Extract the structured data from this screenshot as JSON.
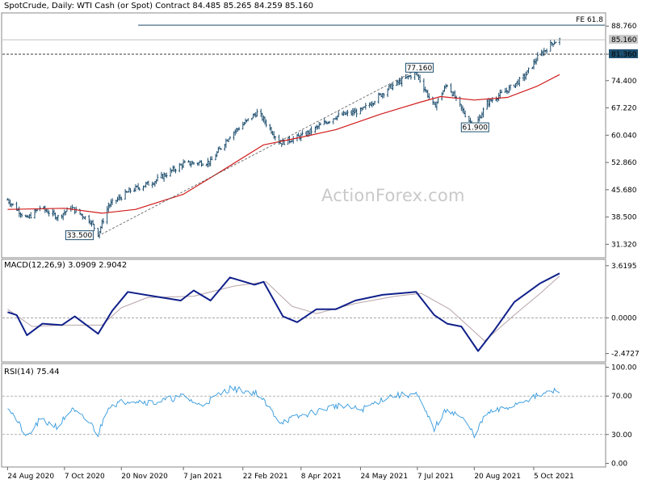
{
  "header": {
    "title": "SpotCrude, Daily:  WTI Cash (or Spot) Contract  84.485 85.265 84.259 85.160"
  },
  "watermark": "ActionForex.com",
  "colors": {
    "price_bar": "#1e4e6e",
    "sma": "#d11b1b",
    "macd_main": "#10208a",
    "macd_signal": "#b8a4a8",
    "rsi": "#3399dd",
    "fe_line": "#1e4e6e",
    "support_line": "#1e4e6e",
    "trendline": "#555555",
    "label_bg": "#1e4e6e"
  },
  "panels": {
    "price": {
      "axis_ticks": [
        "88.760",
        "81.360",
        "74.400",
        "67.220",
        "60.040",
        "52.860",
        "45.680",
        "38.500",
        "31.320"
      ],
      "current_price_label": "85.160",
      "support_label": "81.360",
      "fe_label": "FE 61.8",
      "annotations": [
        "77.160",
        "61.900",
        "33.500"
      ]
    },
    "macd": {
      "title": "MACD(12,26,9) 3.0909 2.9042",
      "axis_ticks": [
        "3.6195",
        "0.0000",
        "-2.4727"
      ]
    },
    "rsi": {
      "title": "RSI(14) 75.44",
      "axis_ticks": [
        "100.00",
        "70.00",
        "30.00",
        "0.00"
      ]
    }
  },
  "x_axis": {
    "labels": [
      "24 Aug 2020",
      "7 Oct 2020",
      "20 Nov 2020",
      "7 Jan 2021",
      "22 Feb 2021",
      "8 Apr 2021",
      "24 May 2021",
      "7 Jul 2021",
      "20 Aug 2021",
      "5 Oct 2021"
    ]
  },
  "chart_data": {
    "type": "ohlc",
    "symbol": "SpotCrude",
    "timeframe": "Daily",
    "last_bar": {
      "open": 84.485,
      "high": 85.265,
      "low": 84.259,
      "close": 85.16
    },
    "price_axis_range": [
      28.0,
      92.0
    ],
    "price_keypoints": [
      {
        "x": "2020-08-24",
        "y": 43.0
      },
      {
        "x": "2020-09-08",
        "y": 38.0
      },
      {
        "x": "2020-09-18",
        "y": 41.0
      },
      {
        "x": "2020-10-02",
        "y": 38.5
      },
      {
        "x": "2020-10-12",
        "y": 41.0
      },
      {
        "x": "2020-10-27",
        "y": 37.5
      },
      {
        "x": "2020-11-02",
        "y": 34.0
      },
      {
        "x": "2020-11-10",
        "y": 41.5
      },
      {
        "x": "2020-11-27",
        "y": 45.5
      },
      {
        "x": "2020-12-15",
        "y": 47.8
      },
      {
        "x": "2021-01-07",
        "y": 52.5
      },
      {
        "x": "2021-01-28",
        "y": 53.0
      },
      {
        "x": "2021-02-12",
        "y": 60.0
      },
      {
        "x": "2021-03-05",
        "y": 66.0
      },
      {
        "x": "2021-03-08",
        "y": 65.0
      },
      {
        "x": "2021-03-23",
        "y": 58.0
      },
      {
        "x": "2021-04-10",
        "y": 60.0
      },
      {
        "x": "2021-05-05",
        "y": 65.0
      },
      {
        "x": "2021-05-25",
        "y": 66.5
      },
      {
        "x": "2021-06-15",
        "y": 72.5
      },
      {
        "x": "2021-07-06",
        "y": 76.5
      },
      {
        "x": "2021-07-20",
        "y": 67.5
      },
      {
        "x": "2021-07-30",
        "y": 73.5
      },
      {
        "x": "2021-08-10",
        "y": 67.0
      },
      {
        "x": "2021-08-20",
        "y": 62.0
      },
      {
        "x": "2021-08-30",
        "y": 68.5
      },
      {
        "x": "2021-09-15",
        "y": 72.0
      },
      {
        "x": "2021-09-28",
        "y": 75.5
      },
      {
        "x": "2021-10-08",
        "y": 80.5
      },
      {
        "x": "2021-10-20",
        "y": 84.5
      },
      {
        "x": "2021-10-25",
        "y": 85.16
      }
    ],
    "sma_keypoints": [
      {
        "x": "2020-08-24",
        "y": 40.5
      },
      {
        "x": "2020-10-07",
        "y": 40.8
      },
      {
        "x": "2020-11-05",
        "y": 39.5
      },
      {
        "x": "2020-12-01",
        "y": 40.5
      },
      {
        "x": "2021-01-07",
        "y": 44.5
      },
      {
        "x": "2021-02-05",
        "y": 50.5
      },
      {
        "x": "2021-03-10",
        "y": 57.5
      },
      {
        "x": "2021-04-08",
        "y": 59.5
      },
      {
        "x": "2021-05-05",
        "y": 61.5
      },
      {
        "x": "2021-06-08",
        "y": 65.5
      },
      {
        "x": "2021-07-07",
        "y": 68.5
      },
      {
        "x": "2021-07-25",
        "y": 70.2
      },
      {
        "x": "2021-08-20",
        "y": 69.3
      },
      {
        "x": "2021-09-15",
        "y": 70.0
      },
      {
        "x": "2021-10-08",
        "y": 73.0
      },
      {
        "x": "2021-10-25",
        "y": 76.0
      }
    ],
    "trendline": [
      {
        "x": "2020-11-02",
        "y": 33.5
      },
      {
        "x": "2021-07-06",
        "y": 77.16
      }
    ],
    "support_level": 81.36,
    "fe_level": 89.0,
    "macd_axis_range": [
      -3.0,
      4.0
    ],
    "macd_keypoints": [
      {
        "x": "2020-08-24",
        "y": 0.4
      },
      {
        "x": "2020-08-31",
        "y": 0.2
      },
      {
        "x": "2020-09-08",
        "y": -1.2
      },
      {
        "x": "2020-09-20",
        "y": -0.4
      },
      {
        "x": "2020-10-05",
        "y": -0.5
      },
      {
        "x": "2020-10-15",
        "y": 0.1
      },
      {
        "x": "2020-11-02",
        "y": -1.1
      },
      {
        "x": "2020-11-13",
        "y": 0.5
      },
      {
        "x": "2020-11-25",
        "y": 1.8
      },
      {
        "x": "2020-12-15",
        "y": 1.5
      },
      {
        "x": "2021-01-05",
        "y": 1.2
      },
      {
        "x": "2021-01-15",
        "y": 1.9
      },
      {
        "x": "2021-01-28",
        "y": 1.2
      },
      {
        "x": "2021-02-12",
        "y": 2.8
      },
      {
        "x": "2021-03-03",
        "y": 2.3
      },
      {
        "x": "2021-03-10",
        "y": 2.5
      },
      {
        "x": "2021-03-25",
        "y": 0.1
      },
      {
        "x": "2021-04-05",
        "y": -0.3
      },
      {
        "x": "2021-04-20",
        "y": 0.6
      },
      {
        "x": "2021-05-05",
        "y": 0.6
      },
      {
        "x": "2021-05-20",
        "y": 1.2
      },
      {
        "x": "2021-06-10",
        "y": 1.6
      },
      {
        "x": "2021-07-06",
        "y": 1.8
      },
      {
        "x": "2021-07-20",
        "y": 0.2
      },
      {
        "x": "2021-07-30",
        "y": -0.4
      },
      {
        "x": "2021-08-10",
        "y": -0.6
      },
      {
        "x": "2021-08-23",
        "y": -2.3
      },
      {
        "x": "2021-09-05",
        "y": -0.8
      },
      {
        "x": "2021-09-20",
        "y": 1.1
      },
      {
        "x": "2021-10-10",
        "y": 2.4
      },
      {
        "x": "2021-10-25",
        "y": 3.09
      }
    ],
    "macd_signal_keypoints": [
      {
        "x": "2020-08-24",
        "y": 0.6
      },
      {
        "x": "2020-09-12",
        "y": -0.6
      },
      {
        "x": "2020-10-05",
        "y": -0.5
      },
      {
        "x": "2020-11-05",
        "y": -0.5
      },
      {
        "x": "2020-11-20",
        "y": 0.7
      },
      {
        "x": "2020-12-10",
        "y": 1.4
      },
      {
        "x": "2021-01-15",
        "y": 1.5
      },
      {
        "x": "2021-02-15",
        "y": 2.2
      },
      {
        "x": "2021-03-12",
        "y": 2.5
      },
      {
        "x": "2021-04-01",
        "y": 0.8
      },
      {
        "x": "2021-04-20",
        "y": 0.3
      },
      {
        "x": "2021-05-20",
        "y": 1.0
      },
      {
        "x": "2021-06-20",
        "y": 1.5
      },
      {
        "x": "2021-07-10",
        "y": 1.7
      },
      {
        "x": "2021-08-01",
        "y": 0.6
      },
      {
        "x": "2021-08-28",
        "y": -1.6
      },
      {
        "x": "2021-09-20",
        "y": 0.2
      },
      {
        "x": "2021-10-10",
        "y": 1.7
      },
      {
        "x": "2021-10-25",
        "y": 2.9
      }
    ],
    "rsi_axis_range": [
      0,
      100
    ],
    "rsi_keypoints": [
      {
        "x": "2020-08-24",
        "y": 60
      },
      {
        "x": "2020-09-08",
        "y": 27
      },
      {
        "x": "2020-09-18",
        "y": 45
      },
      {
        "x": "2020-10-02",
        "y": 38
      },
      {
        "x": "2020-10-12",
        "y": 56
      },
      {
        "x": "2020-10-27",
        "y": 42
      },
      {
        "x": "2020-11-02",
        "y": 30
      },
      {
        "x": "2020-11-10",
        "y": 60
      },
      {
        "x": "2020-11-27",
        "y": 66
      },
      {
        "x": "2020-12-15",
        "y": 63
      },
      {
        "x": "2021-01-07",
        "y": 70
      },
      {
        "x": "2021-01-20",
        "y": 60
      },
      {
        "x": "2021-02-12",
        "y": 78
      },
      {
        "x": "2021-03-05",
        "y": 73
      },
      {
        "x": "2021-03-23",
        "y": 43
      },
      {
        "x": "2021-04-10",
        "y": 50
      },
      {
        "x": "2021-05-05",
        "y": 60
      },
      {
        "x": "2021-05-25",
        "y": 56
      },
      {
        "x": "2021-06-15",
        "y": 70
      },
      {
        "x": "2021-07-06",
        "y": 72
      },
      {
        "x": "2021-07-20",
        "y": 36
      },
      {
        "x": "2021-07-30",
        "y": 57
      },
      {
        "x": "2021-08-10",
        "y": 48
      },
      {
        "x": "2021-08-20",
        "y": 30
      },
      {
        "x": "2021-08-30",
        "y": 52
      },
      {
        "x": "2021-09-15",
        "y": 58
      },
      {
        "x": "2021-09-28",
        "y": 66
      },
      {
        "x": "2021-10-08",
        "y": 70
      },
      {
        "x": "2021-10-20",
        "y": 75
      },
      {
        "x": "2021-10-25",
        "y": 75.44
      }
    ],
    "rsi_levels": [
      70,
      30
    ],
    "x_axis_range": [
      "2020-08-20",
      "2021-11-29"
    ]
  }
}
